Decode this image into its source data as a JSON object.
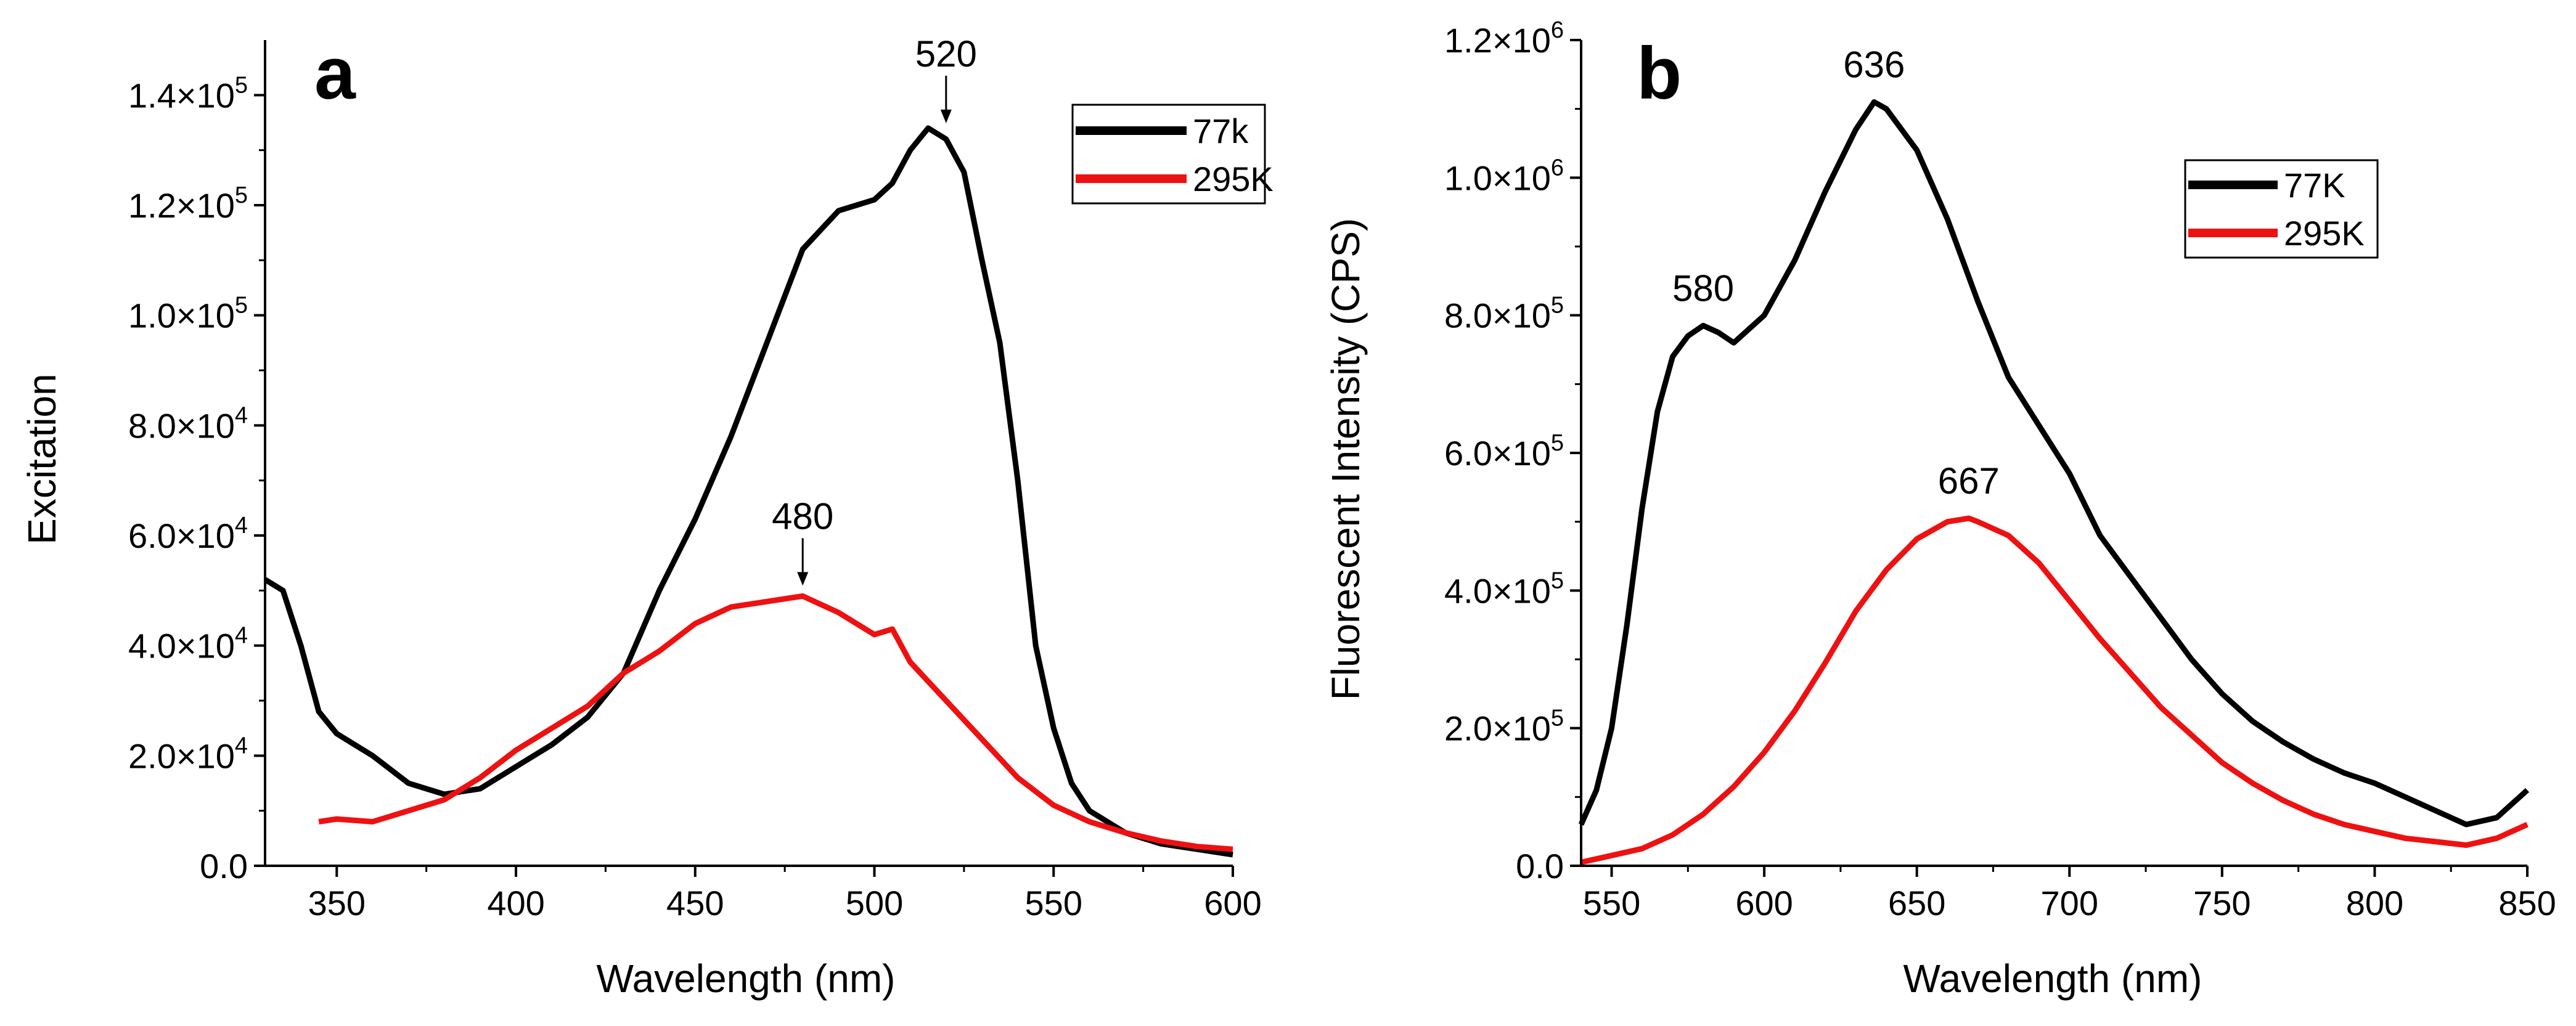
{
  "chart_data": [
    {
      "type": "line",
      "panel_label": "a",
      "xlabel": "Wavelength (nm)",
      "ylabel": "Excitation",
      "xlim": [
        330,
        600
      ],
      "ylim": [
        0,
        150000
      ],
      "x_ticks": [
        350,
        400,
        450,
        500,
        550,
        600
      ],
      "y_ticks": [
        {
          "value": 0,
          "label": "0.0"
        },
        {
          "value": 20000,
          "mantissa": "2.0×10",
          "exponent": "4"
        },
        {
          "value": 40000,
          "mantissa": "4.0×10",
          "exponent": "4"
        },
        {
          "value": 60000,
          "mantissa": "6.0×10",
          "exponent": "4"
        },
        {
          "value": 80000,
          "mantissa": "8.0×10",
          "exponent": "4"
        },
        {
          "value": 100000,
          "mantissa": "1.0×10",
          "exponent": "5"
        },
        {
          "value": 120000,
          "mantissa": "1.2×10",
          "exponent": "5"
        },
        {
          "value": 140000,
          "mantissa": "1.4×10",
          "exponent": "5"
        }
      ],
      "legend_position": "top-right",
      "series": [
        {
          "name": "77k",
          "color": "#000000",
          "x": [
            330,
            335,
            340,
            345,
            350,
            355,
            360,
            370,
            380,
            390,
            400,
            410,
            420,
            430,
            440,
            450,
            460,
            470,
            480,
            490,
            500,
            505,
            510,
            515,
            520,
            525,
            530,
            535,
            540,
            545,
            550,
            555,
            560,
            570,
            580,
            590,
            600
          ],
          "values": [
            52000,
            50000,
            40000,
            28000,
            24000,
            22000,
            20000,
            15000,
            13000,
            14000,
            18000,
            22000,
            27000,
            35000,
            50000,
            63000,
            78000,
            95000,
            112000,
            119000,
            121000,
            124000,
            130000,
            134000,
            132000,
            126000,
            110000,
            95000,
            70000,
            40000,
            25000,
            15000,
            10000,
            6000,
            4000,
            3000,
            2000
          ]
        },
        {
          "name": "295K",
          "color": "#ee1111",
          "x": [
            345,
            350,
            360,
            370,
            380,
            390,
            400,
            410,
            420,
            430,
            440,
            450,
            460,
            470,
            480,
            490,
            500,
            505,
            510,
            520,
            530,
            540,
            550,
            560,
            570,
            580,
            590,
            600
          ],
          "values": [
            8000,
            8500,
            8000,
            10000,
            12000,
            16000,
            21000,
            25000,
            29000,
            35000,
            39000,
            44000,
            47000,
            48000,
            49000,
            46000,
            42000,
            43000,
            37000,
            30000,
            23000,
            16000,
            11000,
            8000,
            6000,
            4500,
            3500,
            3000
          ]
        }
      ],
      "annotations": [
        {
          "text": "520",
          "x": 520,
          "y": 134000,
          "arrow": true
        },
        {
          "text": "480",
          "x": 480,
          "y": 50000,
          "arrow": true
        }
      ]
    },
    {
      "type": "line",
      "panel_label": "b",
      "xlabel": "Wavelength (nm)",
      "ylabel": "Fluorescent Intensity (CPS)",
      "xlim": [
        540,
        850
      ],
      "ylim": [
        0,
        1200000
      ],
      "x_ticks": [
        550,
        600,
        650,
        700,
        750,
        800,
        850
      ],
      "y_ticks": [
        {
          "value": 0,
          "label": "0.0"
        },
        {
          "value": 200000,
          "mantissa": "2.0×10",
          "exponent": "5"
        },
        {
          "value": 400000,
          "mantissa": "4.0×10",
          "exponent": "5"
        },
        {
          "value": 600000,
          "mantissa": "6.0×10",
          "exponent": "5"
        },
        {
          "value": 800000,
          "mantissa": "8.0×10",
          "exponent": "5"
        },
        {
          "value": 1000000,
          "mantissa": "1.0×10",
          "exponent": "6"
        },
        {
          "value": 1200000,
          "mantissa": "1.2×10",
          "exponent": "6"
        }
      ],
      "legend_position": "top-right",
      "series": [
        {
          "name": "77K",
          "color": "#000000",
          "x": [
            540,
            545,
            550,
            555,
            560,
            565,
            570,
            575,
            580,
            585,
            590,
            600,
            610,
            620,
            630,
            636,
            640,
            650,
            660,
            670,
            680,
            690,
            700,
            710,
            720,
            730,
            740,
            750,
            760,
            770,
            780,
            790,
            800,
            810,
            820,
            830,
            840,
            845,
            850
          ],
          "values": [
            60000,
            110000,
            200000,
            350000,
            520000,
            660000,
            740000,
            770000,
            785000,
            775000,
            760000,
            800000,
            880000,
            980000,
            1070000,
            1110000,
            1100000,
            1040000,
            940000,
            820000,
            710000,
            640000,
            570000,
            480000,
            420000,
            360000,
            300000,
            250000,
            210000,
            180000,
            155000,
            135000,
            120000,
            100000,
            80000,
            60000,
            70000,
            90000,
            110000
          ]
        },
        {
          "name": "295K",
          "color": "#ee1111",
          "x": [
            540,
            550,
            560,
            570,
            580,
            590,
            600,
            610,
            620,
            630,
            640,
            650,
            660,
            667,
            670,
            680,
            690,
            700,
            710,
            720,
            730,
            740,
            750,
            760,
            770,
            780,
            790,
            800,
            810,
            820,
            830,
            840,
            850
          ],
          "values": [
            5000,
            15000,
            25000,
            45000,
            75000,
            115000,
            165000,
            225000,
            295000,
            370000,
            430000,
            475000,
            500000,
            505000,
            500000,
            480000,
            440000,
            385000,
            330000,
            280000,
            230000,
            190000,
            150000,
            120000,
            95000,
            75000,
            60000,
            50000,
            40000,
            35000,
            30000,
            40000,
            60000
          ]
        }
      ],
      "annotations": [
        {
          "text": "636",
          "x": 636,
          "y": 1110000,
          "arrow": false
        },
        {
          "text": "580",
          "x": 580,
          "y": 785000,
          "arrow": false
        },
        {
          "text": "667",
          "x": 667,
          "y": 505000,
          "arrow": false
        }
      ]
    }
  ]
}
